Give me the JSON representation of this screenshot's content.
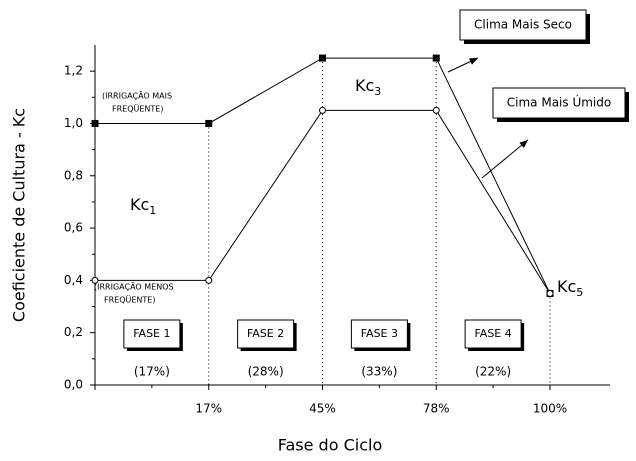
{
  "chart_data": {
    "type": "line",
    "y_label": "Coeficiente de Cultura - Kc",
    "x_label": "Fase do Ciclo",
    "categories": [
      null,
      "17%",
      "45%",
      "78%",
      "100%"
    ],
    "series": [
      {
        "name": "Clima Mais Seco",
        "color": "#000000",
        "marker": "square",
        "values": [
          1.0,
          1.0,
          1.25,
          1.25,
          0.35
        ]
      },
      {
        "name": "Cima Mais Úmido",
        "color": "#000000",
        "marker": "circle",
        "values": [
          0.4,
          0.4,
          1.05,
          1.05,
          0.35
        ]
      }
    ],
    "ylim": [
      0,
      1.3
    ],
    "yticks": [
      {
        "value": 0,
        "label": "0,0"
      },
      {
        "value": 0.2,
        "label": "0,2"
      },
      {
        "value": 0.4,
        "label": "0,4"
      },
      {
        "value": 0.6,
        "label": "0,6"
      },
      {
        "value": 0.8,
        "label": "0,8"
      },
      {
        "value": 1.0,
        "label": "1,0"
      },
      {
        "value": 1.2,
        "label": "1,2"
      }
    ],
    "annotations": {
      "irrigation_high": [
        "(IRRIGAÇÃO MAIS",
        "FREQÜENTE)"
      ],
      "irrigation_low": [
        "(IRRIGAÇÃO MENOS",
        "FREQÜENTE)"
      ],
      "kc": [
        {
          "text": "Kc",
          "sub": "1"
        },
        {
          "text": "Kc",
          "sub": "3"
        },
        {
          "text": "Kc",
          "sub": "5"
        }
      ],
      "phases": [
        "FASE 1",
        "FASE 2",
        "FASE 3",
        "FASE 4"
      ],
      "phase_shares": [
        "(17%)",
        "(28%)",
        "(33%)",
        "(22%)"
      ]
    }
  }
}
